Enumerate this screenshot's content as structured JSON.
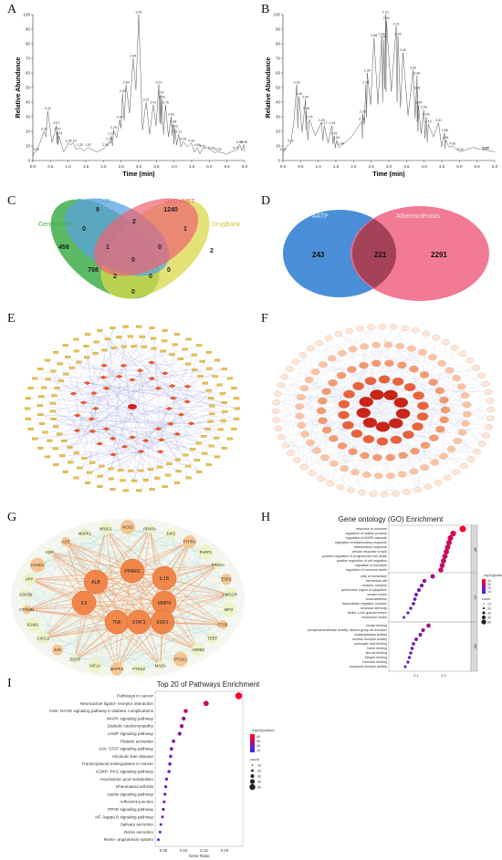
{
  "panels": {
    "A": "A",
    "B": "B",
    "C": "C",
    "D": "D",
    "E": "E",
    "F": "F",
    "G": "G",
    "H": "H",
    "I": "I"
  },
  "chrom_a": {
    "xlabel": "Time (min)",
    "ylabel": "Relative Abundance",
    "xticks": [
      "0.0",
      "0.5",
      "1.0",
      "1.5",
      "2.0",
      "2.5",
      "3.0",
      "3.5",
      "4.0",
      "4.5",
      "5.0",
      "5.5",
      "6.0"
    ],
    "yticks": [
      "0",
      "10",
      "20",
      "30",
      "40",
      "50",
      "60",
      "70",
      "80",
      "90",
      "100"
    ],
    "peaks": [
      {
        "t": 0.09,
        "a": 6,
        "label": "0.09"
      },
      {
        "t": 0.32,
        "a": 20,
        "label": "0.32"
      },
      {
        "t": 0.42,
        "a": 34,
        "label": "0.42"
      },
      {
        "t": 0.67,
        "a": 24,
        "label": "0.67"
      },
      {
        "t": 0.7,
        "a": 20,
        "label": "0.70"
      },
      {
        "t": 0.74,
        "a": 17,
        "label": "0.74"
      },
      {
        "t": 1.01,
        "a": 12,
        "label": "1.01"
      },
      {
        "t": 1.14,
        "a": 12,
        "label": "1.14"
      },
      {
        "t": 1.33,
        "a": 9,
        "label": "1.33"
      },
      {
        "t": 1.57,
        "a": 9,
        "label": "1.57"
      },
      {
        "t": 2.05,
        "a": 9,
        "label": "2.05"
      },
      {
        "t": 2.17,
        "a": 13,
        "label": "2.17"
      },
      {
        "t": 2.22,
        "a": 17,
        "label": "2.22"
      },
      {
        "t": 2.29,
        "a": 21,
        "label": "2.29"
      },
      {
        "t": 2.46,
        "a": 28,
        "label": "2.46"
      },
      {
        "t": 2.54,
        "a": 46,
        "label": "2.54"
      },
      {
        "t": 2.64,
        "a": 52,
        "label": "2.64"
      },
      {
        "t": 2.84,
        "a": 70,
        "label": "2.84"
      },
      {
        "t": 3.0,
        "a": 100,
        "label": "3.00"
      },
      {
        "t": 3.21,
        "a": 40,
        "label": "3.21"
      },
      {
        "t": 3.41,
        "a": 38,
        "label": "3.41"
      },
      {
        "t": 3.57,
        "a": 52,
        "label": "3.57"
      },
      {
        "t": 3.62,
        "a": 45,
        "label": "3.62"
      },
      {
        "t": 3.65,
        "a": 42,
        "label": "3.65"
      },
      {
        "t": 3.76,
        "a": 38,
        "label": "3.76"
      },
      {
        "t": 3.92,
        "a": 30,
        "label": "3.92"
      },
      {
        "t": 3.98,
        "a": 25,
        "label": "3.98"
      },
      {
        "t": 4.02,
        "a": 22,
        "label": "4.02"
      },
      {
        "t": 4.13,
        "a": 18,
        "label": "4.13"
      },
      {
        "t": 4.26,
        "a": 13,
        "label": "4.26"
      },
      {
        "t": 4.49,
        "a": 12,
        "label": "4.49"
      },
      {
        "t": 4.66,
        "a": 9,
        "label": "4.66"
      },
      {
        "t": 4.81,
        "a": 8,
        "label": "4.81"
      },
      {
        "t": 5.06,
        "a": 7,
        "label": "5.06"
      },
      {
        "t": 5.25,
        "a": 6,
        "label": "5.25"
      },
      {
        "t": 5.75,
        "a": 7,
        "label": "5.75"
      },
      {
        "t": 5.86,
        "a": 11,
        "label": "5.86"
      },
      {
        "t": 5.98,
        "a": 11,
        "label": "5.98"
      }
    ]
  },
  "chrom_b": {
    "xlabel": "Time (min)",
    "ylabel": "Relative Abundance",
    "xticks": [
      "0.0",
      "0.5",
      "1.0",
      "1.5",
      "2.0",
      "2.5",
      "3.0",
      "3.5",
      "4.0",
      "4.5",
      "5.0",
      "5.5",
      "6.0"
    ],
    "yticks": [
      "0",
      "10",
      "20",
      "30",
      "40",
      "50",
      "60",
      "70",
      "80",
      "90",
      "100"
    ],
    "peaks": [
      {
        "t": 0.01,
        "a": 6,
        "label": "0.01"
      },
      {
        "t": 0.22,
        "a": 12,
        "label": "0.22"
      },
      {
        "t": 0.39,
        "a": 52,
        "label": "0.39"
      },
      {
        "t": 0.45,
        "a": 44,
        "label": "0.45"
      },
      {
        "t": 0.64,
        "a": 42,
        "label": "0.64"
      },
      {
        "t": 0.66,
        "a": 34,
        "label": "0.66"
      },
      {
        "t": 0.75,
        "a": 28,
        "label": "0.75"
      },
      {
        "t": 1.09,
        "a": 26,
        "label": "1.09"
      },
      {
        "t": 1.17,
        "a": 24,
        "label": "1.17"
      },
      {
        "t": 1.39,
        "a": 24,
        "label": "1.39"
      },
      {
        "t": 1.45,
        "a": 17,
        "label": "1.45"
      },
      {
        "t": 1.52,
        "a": 14,
        "label": "1.52"
      },
      {
        "t": 1.64,
        "a": 10,
        "label": "1.64"
      },
      {
        "t": 2.24,
        "a": 27,
        "label": "2.24"
      },
      {
        "t": 2.26,
        "a": 32,
        "label": "2.26"
      },
      {
        "t": 2.35,
        "a": 52,
        "label": "2.35"
      },
      {
        "t": 2.39,
        "a": 60,
        "label": "2.39"
      },
      {
        "t": 2.58,
        "a": 84,
        "label": "2.58"
      },
      {
        "t": 2.8,
        "a": 85,
        "label": "2.80"
      },
      {
        "t": 2.85,
        "a": 83,
        "label": "2.85"
      },
      {
        "t": 2.91,
        "a": 100,
        "label": "2.91"
      },
      {
        "t": 2.93,
        "a": 96,
        "label": "2.93"
      },
      {
        "t": 3.21,
        "a": 92,
        "label": "3.21"
      },
      {
        "t": 3.26,
        "a": 85,
        "label": "3.26"
      },
      {
        "t": 3.4,
        "a": 74,
        "label": "3.40"
      },
      {
        "t": 3.69,
        "a": 62,
        "label": "3.69"
      },
      {
        "t": 3.8,
        "a": 58,
        "label": "3.80"
      },
      {
        "t": 3.81,
        "a": 48,
        "label": "3.81"
      },
      {
        "t": 3.84,
        "a": 38,
        "label": "3.84"
      },
      {
        "t": 3.99,
        "a": 35,
        "label": "3.99"
      },
      {
        "t": 4.06,
        "a": 30,
        "label": "4.06"
      },
      {
        "t": 4.12,
        "a": 25,
        "label": "4.12"
      },
      {
        "t": 4.41,
        "a": 26,
        "label": "4.41"
      },
      {
        "t": 4.58,
        "a": 19,
        "label": "4.58"
      },
      {
        "t": 4.61,
        "a": 14,
        "label": "4.61"
      },
      {
        "t": 4.81,
        "a": 10,
        "label": "4.81"
      },
      {
        "t": 5.02,
        "a": 6,
        "label": "5.02"
      },
      {
        "t": 5.73,
        "a": 7,
        "label": "5.73"
      },
      {
        "t": 5.76,
        "a": 7,
        "label": "5.76"
      }
    ]
  },
  "venn_c": {
    "sets": [
      {
        "name": "PharmGKB",
        "color": "#5aa2df"
      },
      {
        "name": "GeneCards",
        "color": "#3fae49"
      },
      {
        "name": "DisGeNET",
        "color": "#f06272"
      },
      {
        "name": "DrugBank",
        "color": "#d8d84a"
      }
    ],
    "counts": {
      "genecards_only": "456",
      "pharmgkb_only": "9",
      "disgenet_only": "1240",
      "drugbank_only": "2",
      "gc_pg": "0",
      "pg_dg": "2",
      "dg_db": "1",
      "gc_dg": "798",
      "pg_db": "0",
      "gc_pg_dg": "1",
      "pg_dg_db": "0",
      "all": "0",
      "gc_dg_db": "2",
      "gc_pg_db": "0",
      "gc_db": "0"
    }
  },
  "venn_d": {
    "left": {
      "name": "AATP",
      "count": "243",
      "color": "#4a8fd8"
    },
    "right": {
      "name": "Atherosclerosis",
      "count": "2291",
      "color": "#f06c8a"
    },
    "overlap": "221"
  },
  "network_g": {
    "core": [
      "ALB",
      "PPARG",
      "IL1B",
      "IL6",
      "MMP9",
      "TNF",
      "STAT3",
      "ESR1"
    ],
    "ring": [
      "ACE",
      "MAPK1",
      "NR3C1",
      "NOS3",
      "PPARA",
      "JAK2",
      "PTPRC",
      "PARP1",
      "PRKCA",
      "ESR2",
      "HMGCR",
      "MPO",
      "CTSB",
      "TERT",
      "ADRB2",
      "PTGS1",
      "MAOA",
      "PTGS2",
      "MAPK3",
      "HIF1A",
      "EGFR",
      "JUN",
      "CXCL8",
      "ICAM1",
      "CTNNB1",
      "GSK3B",
      "APP",
      "CCND1",
      "KDR"
    ]
  },
  "go_chart": {
    "title": "Gene ontology (GO) Enrichment",
    "xlabel": "Gene Ratio",
    "xticks": [
      "0.1",
      "0.2"
    ],
    "legend_color_title": "- log10(pvalue)",
    "legend_color_ticks": [
      "40",
      "30",
      "20",
      "10"
    ],
    "legend_size_title": "count",
    "legend_size_ticks": [
      "10",
      "20",
      "30",
      "40",
      "50"
    ],
    "groups": [
      {
        "name": "BP",
        "terms": [
          {
            "label": "response to hormone",
            "ratio": 0.27,
            "logp": 40,
            "count": 55
          },
          {
            "label": "regulation of system process",
            "ratio": 0.235,
            "logp": 33,
            "count": 48
          },
          {
            "label": "regulation of MAPK cascade",
            "ratio": 0.225,
            "logp": 31,
            "count": 46
          },
          {
            "label": "regulation of inflammatory response",
            "ratio": 0.22,
            "logp": 30,
            "count": 45
          },
          {
            "label": "inflammatory response",
            "ratio": 0.215,
            "logp": 30,
            "count": 44
          },
          {
            "label": "cellular response to lipid",
            "ratio": 0.21,
            "logp": 29,
            "count": 43
          },
          {
            "label": "positive regulation of programmed cell death",
            "ratio": 0.205,
            "logp": 29,
            "count": 42
          },
          {
            "label": "positive regulation of cell migration",
            "ratio": 0.2,
            "logp": 28,
            "count": 41
          },
          {
            "label": "regulation of secretion",
            "ratio": 0.195,
            "logp": 28,
            "count": 40
          },
          {
            "label": "regulation of hormone levels",
            "ratio": 0.19,
            "logp": 27,
            "count": 39
          }
        ]
      },
      {
        "name": "CC",
        "terms": [
          {
            "label": "side of membrane",
            "ratio": 0.16,
            "logp": 20,
            "count": 33
          },
          {
            "label": "membrane raft",
            "ratio": 0.13,
            "logp": 18,
            "count": 27
          },
          {
            "label": "receptor complex",
            "ratio": 0.12,
            "logp": 14,
            "count": 25
          },
          {
            "label": "perinuclear region of cytoplasm",
            "ratio": 0.11,
            "logp": 12,
            "count": 23
          },
          {
            "label": "vesicle lumen",
            "ratio": 0.1,
            "logp": 11,
            "count": 21
          },
          {
            "label": "focal adhesion",
            "ratio": 0.095,
            "logp": 10,
            "count": 20
          },
          {
            "label": "transcription regulator complex",
            "ratio": 0.09,
            "logp": 9,
            "count": 19
          },
          {
            "label": "neuronal cell body",
            "ratio": 0.08,
            "logp": 8,
            "count": 17
          },
          {
            "label": "ficolin-1-rich granule lumen",
            "ratio": 0.07,
            "logp": 7,
            "count": 15
          },
          {
            "label": "endosome lumen",
            "ratio": 0.055,
            "logp": 6,
            "count": 11
          }
        ]
      },
      {
        "name": "MF",
        "terms": [
          {
            "label": "kinase binding",
            "ratio": 0.145,
            "logp": 19,
            "count": 30
          },
          {
            "label": "phosphotransferase activity, alcohol group as acceptor",
            "ratio": 0.125,
            "logp": 17,
            "count": 26
          },
          {
            "label": "endopeptidase activity",
            "ratio": 0.115,
            "logp": 15,
            "count": 24
          },
          {
            "label": "nuclear receptor activity",
            "ratio": 0.1,
            "logp": 14,
            "count": 21
          },
          {
            "label": "carboxylic acid binding",
            "ratio": 0.09,
            "logp": 12,
            "count": 19
          },
          {
            "label": "heme binding",
            "ratio": 0.085,
            "logp": 11,
            "count": 18
          },
          {
            "label": "steroid binding",
            "ratio": 0.08,
            "logp": 10,
            "count": 17
          },
          {
            "label": "integrin binding",
            "ratio": 0.075,
            "logp": 9,
            "count": 16
          },
          {
            "label": "hormone binding",
            "ratio": 0.07,
            "logp": 8,
            "count": 15
          },
          {
            "label": "icosanoid receptor activity",
            "ratio": 0.06,
            "logp": 7,
            "count": 12
          }
        ]
      }
    ]
  },
  "kegg_chart": {
    "title": "Top 20 of Pathways Enrichment",
    "xlabel": "Gene Ratio",
    "xticks": [
      "0.05",
      "0.10",
      "0.15",
      "0.20"
    ],
    "legend_color_title": "- log10(pvalue)",
    "legend_color_ticks": [
      "40",
      "30",
      "20",
      "10"
    ],
    "legend_size_title": "count",
    "legend_size_ticks": [
      "10",
      "20",
      "30",
      "40",
      "50"
    ],
    "terms": [
      {
        "label": "Pathways in cancer",
        "ratio": 0.235,
        "logp": 42,
        "count": 55
      },
      {
        "label": "Neuroactive ligand- receptor interaction",
        "ratio": 0.155,
        "logp": 30,
        "count": 38
      },
      {
        "label": "AGE- RAGE signaling pathway in diabetic complications",
        "ratio": 0.105,
        "logp": 28,
        "count": 25
      },
      {
        "label": "MAPK signaling pathway",
        "ratio": 0.1,
        "logp": 22,
        "count": 24
      },
      {
        "label": "Diabetic cardiomyopathy",
        "ratio": 0.095,
        "logp": 20,
        "count": 23
      },
      {
        "label": "cAMP signaling pathway",
        "ratio": 0.09,
        "logp": 18,
        "count": 22
      },
      {
        "label": "Platelet activation",
        "ratio": 0.075,
        "logp": 17,
        "count": 18
      },
      {
        "label": "JAK- STAT signaling pathway",
        "ratio": 0.07,
        "logp": 15,
        "count": 17
      },
      {
        "label": "Alcoholic liver disease",
        "ratio": 0.068,
        "logp": 14,
        "count": 16
      },
      {
        "label": "Transcriptional misregulation in cancer",
        "ratio": 0.066,
        "logp": 13,
        "count": 16
      },
      {
        "label": "cGMP- PKG signaling pathway",
        "ratio": 0.064,
        "logp": 12,
        "count": 15
      },
      {
        "label": "Arachidonic acid metabolism",
        "ratio": 0.058,
        "logp": 12,
        "count": 14
      },
      {
        "label": "Rheumatoid arthritis",
        "ratio": 0.056,
        "logp": 11,
        "count": 13
      },
      {
        "label": "Apelin signaling pathway",
        "ratio": 0.054,
        "logp": 10,
        "count": 13
      },
      {
        "label": "Adherens junction",
        "ratio": 0.052,
        "logp": 10,
        "count": 12
      },
      {
        "label": "PPAR signaling pathway",
        "ratio": 0.05,
        "logp": 9,
        "count": 12
      },
      {
        "label": "NF- kappa B signaling pathway",
        "ratio": 0.048,
        "logp": 9,
        "count": 11
      },
      {
        "label": "Salivary secretion",
        "ratio": 0.044,
        "logp": 8,
        "count": 10
      },
      {
        "label": "Renin secretion",
        "ratio": 0.042,
        "logp": 7,
        "count": 10
      },
      {
        "label": "Renin- angiotensin system",
        "ratio": 0.038,
        "logp": 6,
        "count": 9
      }
    ]
  }
}
